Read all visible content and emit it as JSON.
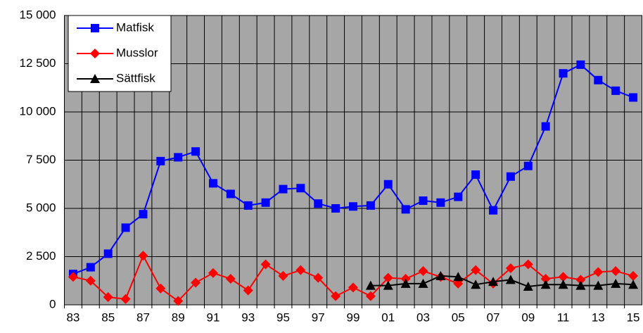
{
  "chart_data": {
    "type": "line",
    "categories": [
      "83",
      null,
      "85",
      null,
      "87",
      null,
      "89",
      null,
      "91",
      null,
      "93",
      null,
      "95",
      null,
      "97",
      null,
      "99",
      null,
      "01",
      null,
      "03",
      null,
      "05",
      null,
      "07",
      null,
      "09",
      null,
      "11",
      null,
      "13",
      null,
      "15"
    ],
    "series": [
      {
        "name": "Matfisk",
        "color": "#0000ff",
        "marker": "square",
        "values": [
          1600,
          1950,
          2650,
          4000,
          4700,
          7450,
          7650,
          7950,
          6300,
          5750,
          5150,
          5300,
          6000,
          6050,
          5250,
          5000,
          5100,
          5150,
          6250,
          4950,
          5400,
          5300,
          5600,
          6750,
          4900,
          6650,
          7200,
          9250,
          12000,
          12450,
          11650,
          11100,
          10750
        ]
      },
      {
        "name": "Musslor",
        "color": "#ff0000",
        "marker": "diamond",
        "values": [
          1450,
          1250,
          400,
          300,
          2550,
          850,
          200,
          1150,
          1650,
          1350,
          750,
          2100,
          1500,
          1800,
          1400,
          450,
          900,
          450,
          1400,
          1350,
          1750,
          1450,
          1100,
          1800,
          1100,
          1900,
          2100,
          1350,
          1450,
          1300,
          1700,
          1750,
          1500
        ]
      },
      {
        "name": "Sättfisk",
        "color": "#000000",
        "marker": "triangle",
        "values": [
          null,
          null,
          null,
          null,
          null,
          null,
          null,
          null,
          null,
          null,
          null,
          null,
          null,
          null,
          null,
          null,
          null,
          1000,
          1000,
          1100,
          1100,
          1500,
          1450,
          1050,
          1200,
          1300,
          950,
          1050,
          1050,
          1000,
          1000,
          1100,
          1050
        ]
      }
    ],
    "ylim": [
      0,
      15000
    ],
    "yticks": [
      0,
      {
        "value": 2500,
        "label": "2 500"
      },
      {
        "value": 5000,
        "label": "5 000"
      },
      {
        "value": 7500,
        "label": "7 500"
      },
      {
        "value": 10000,
        "label": "10 000"
      },
      {
        "value": 12500,
        "label": "12 500"
      },
      {
        "value": 15000,
        "label": "15 000"
      }
    ],
    "grid": true,
    "legend": "top-left",
    "background": "#a6a6a6"
  }
}
